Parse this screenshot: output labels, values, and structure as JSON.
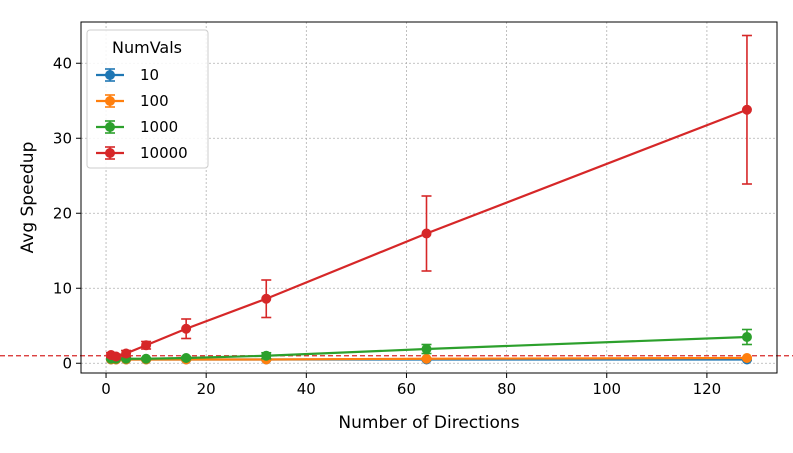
{
  "chart_data": {
    "type": "line",
    "title": "",
    "xlabel": "Number of Directions",
    "ylabel": "Avg Speedup",
    "xlim": [
      -5,
      134
    ],
    "ylim": [
      -1.3,
      45.5
    ],
    "xticks": [
      0,
      20,
      40,
      60,
      80,
      100,
      120
    ],
    "yticks": [
      0,
      10,
      20,
      30,
      40
    ],
    "grid": true,
    "legend_title": "NumVals",
    "legend_position": "top-left",
    "reference_line": {
      "y": 1,
      "color": "#d62728",
      "style": "dashed"
    },
    "x": [
      1,
      2,
      4,
      8,
      16,
      32,
      64,
      128
    ],
    "series": [
      {
        "name": "10",
        "color": "#1f77b4",
        "values": [
          0.5,
          0.5,
          0.5,
          0.5,
          0.5,
          0.5,
          0.5,
          0.5
        ],
        "errors": [
          0.1,
          0.1,
          0.1,
          0.1,
          0.1,
          0.1,
          0.1,
          0.1
        ]
      },
      {
        "name": "100",
        "color": "#ff7f0e",
        "values": [
          0.5,
          0.5,
          0.5,
          0.5,
          0.5,
          0.5,
          0.6,
          0.7
        ],
        "errors": [
          0.1,
          0.1,
          0.1,
          0.1,
          0.1,
          0.1,
          0.1,
          0.1
        ]
      },
      {
        "name": "1000",
        "color": "#2ca02c",
        "values": [
          0.6,
          0.6,
          0.6,
          0.6,
          0.7,
          1.0,
          1.9,
          3.5
        ],
        "errors": [
          0.1,
          0.1,
          0.1,
          0.1,
          0.2,
          0.4,
          0.6,
          1.0
        ]
      },
      {
        "name": "10000",
        "color": "#d62728",
        "values": [
          1.1,
          0.9,
          1.3,
          2.4,
          4.6,
          8.6,
          17.3,
          33.8
        ],
        "errors": [
          0.3,
          0.3,
          0.4,
          0.5,
          1.3,
          2.5,
          5.0,
          9.9
        ]
      }
    ]
  }
}
